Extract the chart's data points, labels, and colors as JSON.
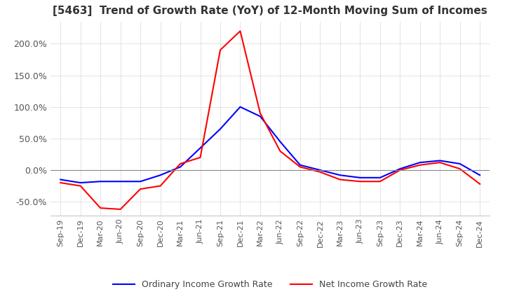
{
  "title": "[5463]  Trend of Growth Rate (YoY) of 12-Month Moving Sum of Incomes",
  "legend": [
    "Ordinary Income Growth Rate",
    "Net Income Growth Rate"
  ],
  "line_colors": [
    "blue",
    "red"
  ],
  "yticks": [
    -0.5,
    0.0,
    0.5,
    1.0,
    1.5,
    2.0
  ],
  "ytick_labels": [
    "-50.0%",
    "0.0%",
    "50.0%",
    "100.0%",
    "150.0%",
    "200.0%"
  ],
  "x_labels": [
    "Sep-19",
    "Dec-19",
    "Mar-20",
    "Jun-20",
    "Sep-20",
    "Dec-20",
    "Mar-21",
    "Jun-21",
    "Sep-21",
    "Dec-21",
    "Mar-22",
    "Jun-22",
    "Sep-22",
    "Dec-22",
    "Mar-23",
    "Jun-23",
    "Sep-23",
    "Dec-23",
    "Mar-24",
    "Jun-24",
    "Sep-24",
    "Dec-24"
  ],
  "ordinary_income_growth": [
    -0.15,
    -0.2,
    -0.18,
    -0.18,
    -0.18,
    -0.08,
    0.05,
    0.35,
    0.65,
    1.0,
    0.85,
    0.45,
    0.08,
    0.0,
    -0.08,
    -0.12,
    -0.12,
    0.02,
    0.12,
    0.15,
    0.1,
    -0.08
  ],
  "net_income_growth": [
    -0.2,
    -0.25,
    -0.6,
    -0.62,
    -0.3,
    -0.25,
    0.1,
    0.2,
    1.9,
    2.2,
    0.9,
    0.3,
    0.05,
    -0.03,
    -0.15,
    -0.18,
    -0.18,
    0.0,
    0.08,
    0.12,
    0.02,
    -0.22
  ]
}
